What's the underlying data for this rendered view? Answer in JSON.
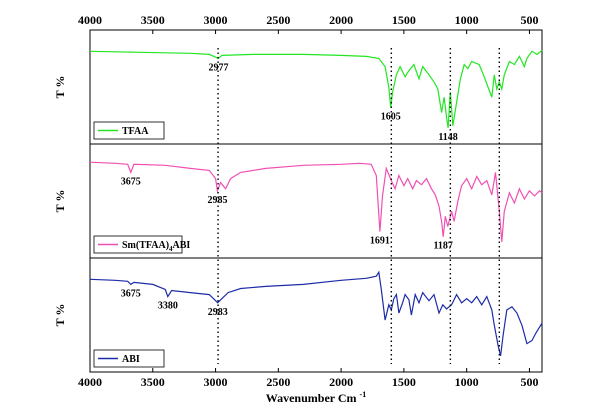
{
  "chart_data": {
    "type": "line",
    "xlabel": "Wavenumber Cm",
    "xlabel_sup": "-1",
    "xlim": [
      4000,
      400
    ],
    "x_ticks": [
      4000,
      3500,
      3000,
      2500,
      2000,
      1500,
      1000,
      500
    ],
    "x_tick_labels": [
      "4000",
      "3500",
      "3000",
      "2500",
      "2000",
      "1500",
      "1000",
      "500"
    ],
    "panels": [
      {
        "ylabel": "T %",
        "legend": "TFAA",
        "legend_placement": "bottom-left",
        "color": "#22e622",
        "points": [
          [
            4000,
            0.85
          ],
          [
            3600,
            0.84
          ],
          [
            3200,
            0.83
          ],
          [
            3050,
            0.82
          ],
          [
            2977,
            0.78
          ],
          [
            2950,
            0.81
          ],
          [
            2700,
            0.82
          ],
          [
            2300,
            0.82
          ],
          [
            2000,
            0.81
          ],
          [
            1800,
            0.8
          ],
          [
            1700,
            0.78
          ],
          [
            1650,
            0.7
          ],
          [
            1620,
            0.5
          ],
          [
            1605,
            0.3
          ],
          [
            1590,
            0.45
          ],
          [
            1560,
            0.62
          ],
          [
            1530,
            0.7
          ],
          [
            1490,
            0.6
          ],
          [
            1460,
            0.66
          ],
          [
            1420,
            0.72
          ],
          [
            1380,
            0.58
          ],
          [
            1350,
            0.7
          ],
          [
            1300,
            0.62
          ],
          [
            1260,
            0.55
          ],
          [
            1230,
            0.48
          ],
          [
            1200,
            0.25
          ],
          [
            1180,
            0.4
          ],
          [
            1160,
            0.2
          ],
          [
            1148,
            0.1
          ],
          [
            1130,
            0.45
          ],
          [
            1110,
            0.12
          ],
          [
            1080,
            0.35
          ],
          [
            1050,
            0.58
          ],
          [
            1020,
            0.72
          ],
          [
            990,
            0.68
          ],
          [
            960,
            0.75
          ],
          [
            900,
            0.72
          ],
          [
            860,
            0.6
          ],
          [
            830,
            0.5
          ],
          [
            800,
            0.4
          ],
          [
            780,
            0.62
          ],
          [
            760,
            0.48
          ],
          [
            740,
            0.55
          ],
          [
            720,
            0.48
          ],
          [
            700,
            0.62
          ],
          [
            660,
            0.75
          ],
          [
            620,
            0.72
          ],
          [
            580,
            0.8
          ],
          [
            540,
            0.7
          ],
          [
            520,
            0.78
          ],
          [
            480,
            0.85
          ],
          [
            440,
            0.82
          ],
          [
            400,
            0.86
          ]
        ],
        "annotations": [
          {
            "label": "2977",
            "x": 2977,
            "y": 0.78
          },
          {
            "label": "1605",
            "x": 1605,
            "y": 0.3
          },
          {
            "label": "1148",
            "x": 1148,
            "y": 0.1
          }
        ]
      },
      {
        "ylabel": "T %",
        "legend": "Sm(TFAA)",
        "legend_sub": "4",
        "legend_suffix": "ABI",
        "legend_placement": "bottom-left",
        "color": "#f050b4",
        "points": [
          [
            4000,
            0.88
          ],
          [
            3800,
            0.87
          ],
          [
            3700,
            0.86
          ],
          [
            3675,
            0.78
          ],
          [
            3650,
            0.86
          ],
          [
            3400,
            0.85
          ],
          [
            3200,
            0.82
          ],
          [
            3050,
            0.8
          ],
          [
            3000,
            0.72
          ],
          [
            2985,
            0.6
          ],
          [
            2960,
            0.68
          ],
          [
            2920,
            0.62
          ],
          [
            2880,
            0.72
          ],
          [
            2800,
            0.78
          ],
          [
            2600,
            0.82
          ],
          [
            2300,
            0.85
          ],
          [
            2000,
            0.86
          ],
          [
            1850,
            0.87
          ],
          [
            1760,
            0.86
          ],
          [
            1720,
            0.75
          ],
          [
            1691,
            0.2
          ],
          [
            1670,
            0.55
          ],
          [
            1640,
            0.82
          ],
          [
            1600,
            0.7
          ],
          [
            1570,
            0.62
          ],
          [
            1540,
            0.75
          ],
          [
            1500,
            0.65
          ],
          [
            1470,
            0.72
          ],
          [
            1430,
            0.62
          ],
          [
            1400,
            0.7
          ],
          [
            1360,
            0.66
          ],
          [
            1320,
            0.72
          ],
          [
            1280,
            0.62
          ],
          [
            1250,
            0.56
          ],
          [
            1220,
            0.45
          ],
          [
            1200,
            0.3
          ],
          [
            1187,
            0.15
          ],
          [
            1170,
            0.35
          ],
          [
            1150,
            0.25
          ],
          [
            1120,
            0.4
          ],
          [
            1100,
            0.3
          ],
          [
            1070,
            0.5
          ],
          [
            1040,
            0.65
          ],
          [
            1000,
            0.72
          ],
          [
            960,
            0.62
          ],
          [
            920,
            0.74
          ],
          [
            880,
            0.66
          ],
          [
            840,
            0.7
          ],
          [
            800,
            0.56
          ],
          [
            770,
            0.78
          ],
          [
            740,
            0.4
          ],
          [
            720,
            0.1
          ],
          [
            700,
            0.4
          ],
          [
            660,
            0.58
          ],
          [
            620,
            0.48
          ],
          [
            580,
            0.62
          ],
          [
            540,
            0.52
          ],
          [
            500,
            0.6
          ],
          [
            460,
            0.55
          ],
          [
            420,
            0.6
          ],
          [
            400,
            0.58
          ]
        ],
        "annotations": [
          {
            "label": "3675",
            "x": 3675,
            "y": 0.78
          },
          {
            "label": "2985",
            "x": 2985,
            "y": 0.6
          },
          {
            "label": "1691",
            "x": 1691,
            "y": 0.2
          },
          {
            "label": "1187",
            "x": 1187,
            "y": 0.15
          }
        ]
      },
      {
        "ylabel": "T %",
        "legend": "ABI",
        "legend_placement": "bottom-left",
        "color": "#1c2ca8",
        "points": [
          [
            4000,
            0.85
          ],
          [
            3800,
            0.84
          ],
          [
            3700,
            0.83
          ],
          [
            3675,
            0.8
          ],
          [
            3650,
            0.82
          ],
          [
            3500,
            0.8
          ],
          [
            3400,
            0.75
          ],
          [
            3380,
            0.68
          ],
          [
            3350,
            0.74
          ],
          [
            3200,
            0.72
          ],
          [
            3050,
            0.7
          ],
          [
            3000,
            0.64
          ],
          [
            2983,
            0.62
          ],
          [
            2950,
            0.66
          ],
          [
            2900,
            0.72
          ],
          [
            2800,
            0.76
          ],
          [
            2600,
            0.78
          ],
          [
            2300,
            0.8
          ],
          [
            2000,
            0.84
          ],
          [
            1800,
            0.86
          ],
          [
            1720,
            0.88
          ],
          [
            1700,
            0.92
          ],
          [
            1680,
            0.75
          ],
          [
            1650,
            0.45
          ],
          [
            1620,
            0.6
          ],
          [
            1600,
            0.55
          ],
          [
            1580,
            0.66
          ],
          [
            1560,
            0.7
          ],
          [
            1540,
            0.52
          ],
          [
            1510,
            0.62
          ],
          [
            1490,
            0.7
          ],
          [
            1460,
            0.65
          ],
          [
            1440,
            0.5
          ],
          [
            1410,
            0.7
          ],
          [
            1380,
            0.62
          ],
          [
            1350,
            0.72
          ],
          [
            1300,
            0.64
          ],
          [
            1260,
            0.7
          ],
          [
            1220,
            0.52
          ],
          [
            1190,
            0.6
          ],
          [
            1160,
            0.56
          ],
          [
            1120,
            0.6
          ],
          [
            1080,
            0.7
          ],
          [
            1040,
            0.62
          ],
          [
            1000,
            0.66
          ],
          [
            960,
            0.62
          ],
          [
            920,
            0.68
          ],
          [
            880,
            0.6
          ],
          [
            840,
            0.68
          ],
          [
            800,
            0.55
          ],
          [
            780,
            0.4
          ],
          [
            750,
            0.2
          ],
          [
            730,
            0.1
          ],
          [
            710,
            0.3
          ],
          [
            680,
            0.55
          ],
          [
            640,
            0.58
          ],
          [
            600,
            0.52
          ],
          [
            560,
            0.4
          ],
          [
            520,
            0.22
          ],
          [
            480,
            0.25
          ],
          [
            450,
            0.32
          ],
          [
            420,
            0.38
          ],
          [
            400,
            0.42
          ]
        ],
        "annotations": [
          {
            "label": "3675",
            "x": 3675,
            "y": 0.8
          },
          {
            "label": "3380",
            "x": 3380,
            "y": 0.68
          },
          {
            "label": "2983",
            "x": 2983,
            "y": 0.62
          }
        ]
      }
    ],
    "reference_lines": [
      2980,
      1600,
      1130,
      740
    ]
  }
}
